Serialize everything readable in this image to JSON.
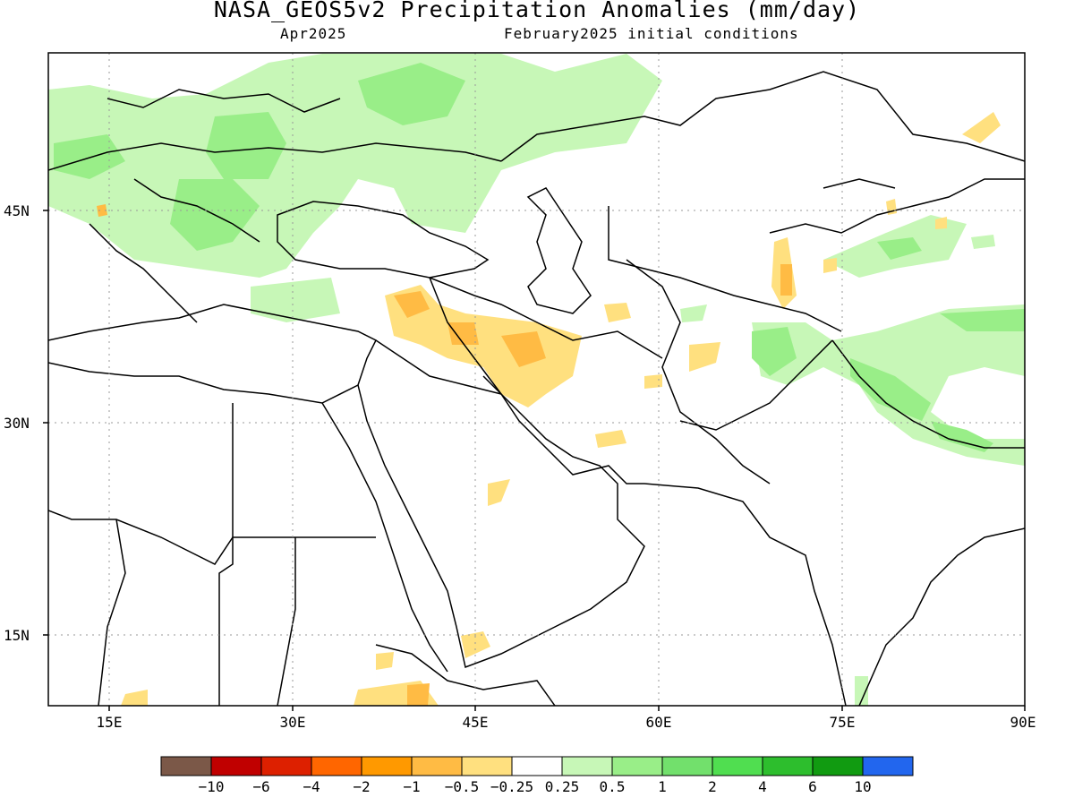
{
  "header": {
    "title": "NASA_GEOS5v2 Precipitation Anomalies (mm/day)",
    "forecast_month": "Apr2025",
    "initial_conditions": "February2025 initial conditions"
  },
  "map": {
    "lon_ticks": [
      "15E",
      "30E",
      "45E",
      "60E",
      "75E",
      "90E"
    ],
    "lat_ticks": [
      "45N",
      "30N",
      "15N"
    ],
    "lon_range": [
      10,
      90
    ],
    "lat_range": [
      10,
      57
    ],
    "gridlines": "dotted"
  },
  "colorbar": {
    "colors": [
      "#7b5848",
      "#c00000",
      "#dd2000",
      "#ff6600",
      "#ff9900",
      "#ffbb44",
      "#ffe07f",
      "#ffffff",
      "#c7f7b7",
      "#99ee88",
      "#72e06c",
      "#50de50",
      "#2dbe2d",
      "#119b11",
      "#2266ee"
    ],
    "labels": [
      "−10",
      "−6",
      "−4",
      "−2",
      "−1",
      "−0.5",
      "−0.25",
      "0.25",
      "0.5",
      "1",
      "2",
      "4",
      "6",
      "10"
    ]
  }
}
